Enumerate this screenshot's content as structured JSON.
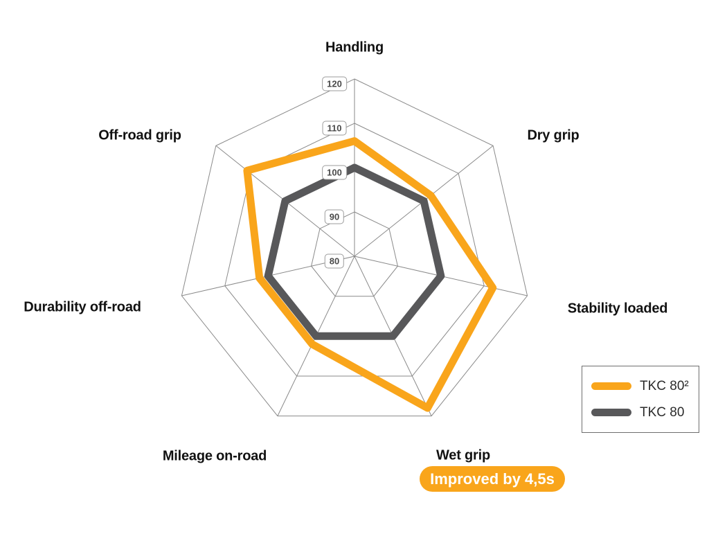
{
  "chart_data": {
    "type": "radar",
    "axes": [
      "Handling",
      "Dry grip",
      "Stability loaded",
      "Wet grip",
      "Mileage on-road",
      "Durability off-road",
      "Off-road grip"
    ],
    "scale": {
      "min": 80,
      "max": 120,
      "rings": [
        80,
        90,
        100,
        110,
        120
      ]
    },
    "series": [
      {
        "name": "TKC 80²",
        "color": "#F9A51B",
        "values": [
          106,
          102,
          112,
          118,
          102,
          102,
          111
        ]
      },
      {
        "name": "TKC 80",
        "color": "#58585A",
        "values": [
          100,
          100,
          100,
          100,
          100,
          100,
          100
        ]
      }
    ],
    "grid_color": "#8A8A8A",
    "legend_position": "right",
    "annotation": {
      "axis": "Wet grip",
      "text": "Improved by 4,5s",
      "color": "#F9A51B",
      "text_color": "#FFFFFF"
    }
  }
}
